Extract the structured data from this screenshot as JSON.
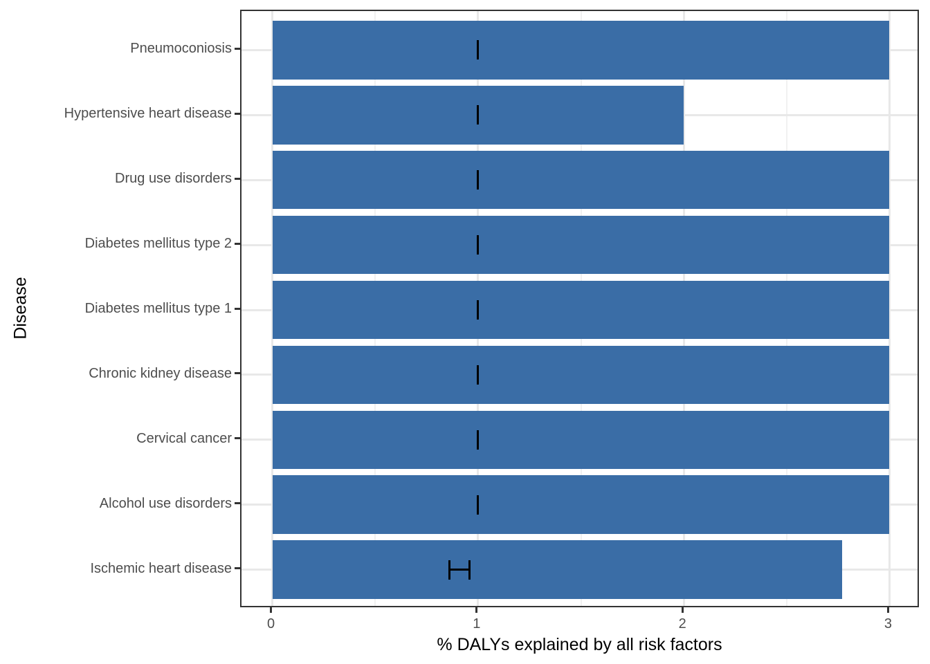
{
  "chart_data": {
    "type": "bar",
    "orientation": "horizontal",
    "title": "",
    "xlabel": "% DALYs explained by all risk factors",
    "ylabel": "Disease",
    "categories_top_to_bottom": [
      "Pneumoconiosis",
      "Hypertensive heart disease",
      "Drug use disorders",
      "Diabetes mellitus type 2",
      "Diabetes mellitus type 1",
      "Chronic kidney disease",
      "Cervical cancer",
      "Alcohol use disorders",
      "Ischemic heart disease"
    ],
    "values": [
      3.0,
      2.0,
      3.0,
      3.0,
      3.0,
      3.0,
      3.0,
      3.0,
      2.77
    ],
    "error_bars": [
      {
        "xmin": 1.0,
        "xmax": 1.0
      },
      {
        "xmin": 1.0,
        "xmax": 1.0
      },
      {
        "xmin": 1.0,
        "xmax": 1.0
      },
      {
        "xmin": 1.0,
        "xmax": 1.0
      },
      {
        "xmin": 1.0,
        "xmax": 1.0
      },
      {
        "xmin": 1.0,
        "xmax": 1.0
      },
      {
        "xmin": 1.0,
        "xmax": 1.0
      },
      {
        "xmin": 1.0,
        "xmax": 1.0
      },
      {
        "xmin": 0.86,
        "xmax": 0.96
      }
    ],
    "x_tick_labels": [
      "0",
      "1",
      "2",
      "3"
    ],
    "x_ticks": [
      0,
      1,
      2,
      3
    ],
    "x_minor_gridlines": [
      0.5,
      1.5,
      2.5
    ],
    "xlim": [
      -0.15,
      3.15
    ],
    "grid": true,
    "legend": "none",
    "colors": {
      "bar": "#3a6da6",
      "errorbar": "#000000",
      "grid_major": "#e8e8e8",
      "grid_minor": "#f1f1f1",
      "panel_border": "#333333",
      "axis_text": "#4d4d4d",
      "axis_title": "#000000",
      "background": "#ffffff"
    }
  }
}
